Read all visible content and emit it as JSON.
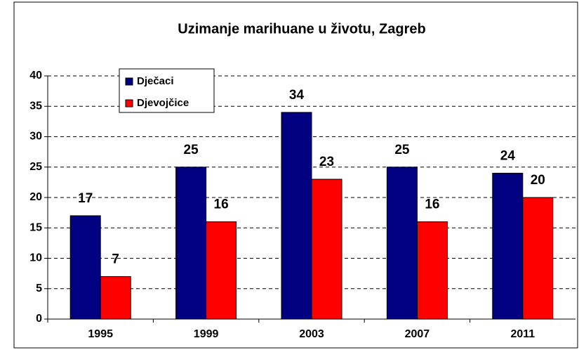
{
  "chart_data": {
    "type": "bar",
    "title": "Uzimanje marihuane u životu, Zagreb",
    "categories": [
      "1995",
      "1999",
      "2003",
      "2007",
      "2011"
    ],
    "series": [
      {
        "name": "Dječaci",
        "color": "#000080",
        "values": [
          17,
          25,
          34,
          25,
          24
        ]
      },
      {
        "name": "Djevojčice",
        "color": "#ff0000",
        "values": [
          7,
          16,
          23,
          16,
          20
        ]
      }
    ],
    "ylim": [
      0,
      40
    ],
    "yticks": [
      0,
      5,
      10,
      15,
      20,
      25,
      30,
      35,
      40
    ],
    "grid": true,
    "legend": "top-left"
  }
}
